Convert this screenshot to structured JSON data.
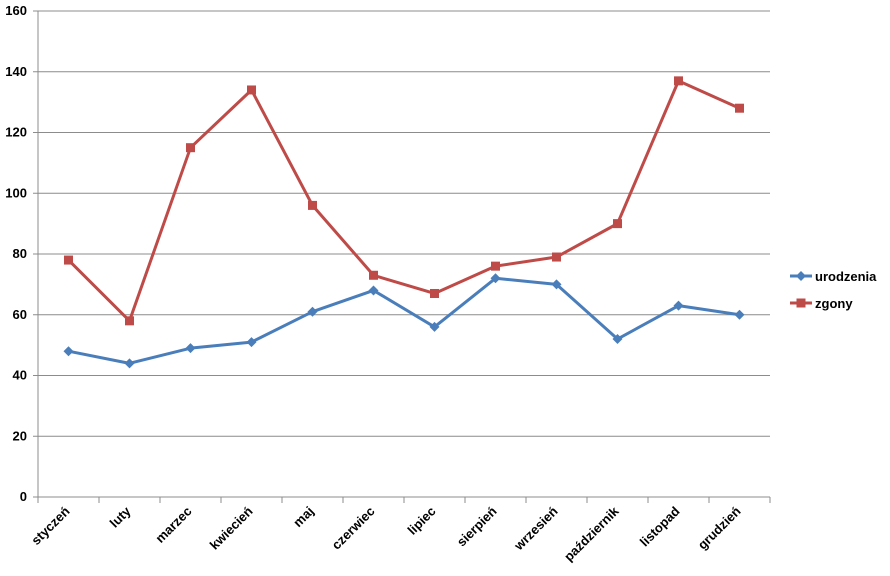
{
  "chart_data": {
    "type": "line",
    "categories": [
      "styczeń",
      "luty",
      "marzec",
      "kwiecień",
      "maj",
      "czerwiec",
      "lipiec",
      "sierpień",
      "wrzesień",
      "październik",
      "listopad",
      "grudzień"
    ],
    "series": [
      {
        "name": "urodzenia",
        "color": "#4a7ebb",
        "marker": "diamond",
        "values": [
          48,
          44,
          49,
          51,
          61,
          68,
          56,
          72,
          70,
          52,
          63,
          60
        ]
      },
      {
        "name": "zgony",
        "color": "#be4b48",
        "marker": "square",
        "values": [
          78,
          58,
          115,
          134,
          96,
          73,
          67,
          76,
          79,
          90,
          137,
          128
        ]
      }
    ],
    "ylim": [
      0,
      160
    ],
    "ytick_step": 20,
    "yticks": [
      "0",
      "20",
      "40",
      "60",
      "80",
      "100",
      "120",
      "140",
      "160"
    ],
    "grid": true,
    "legend_position": "right"
  }
}
